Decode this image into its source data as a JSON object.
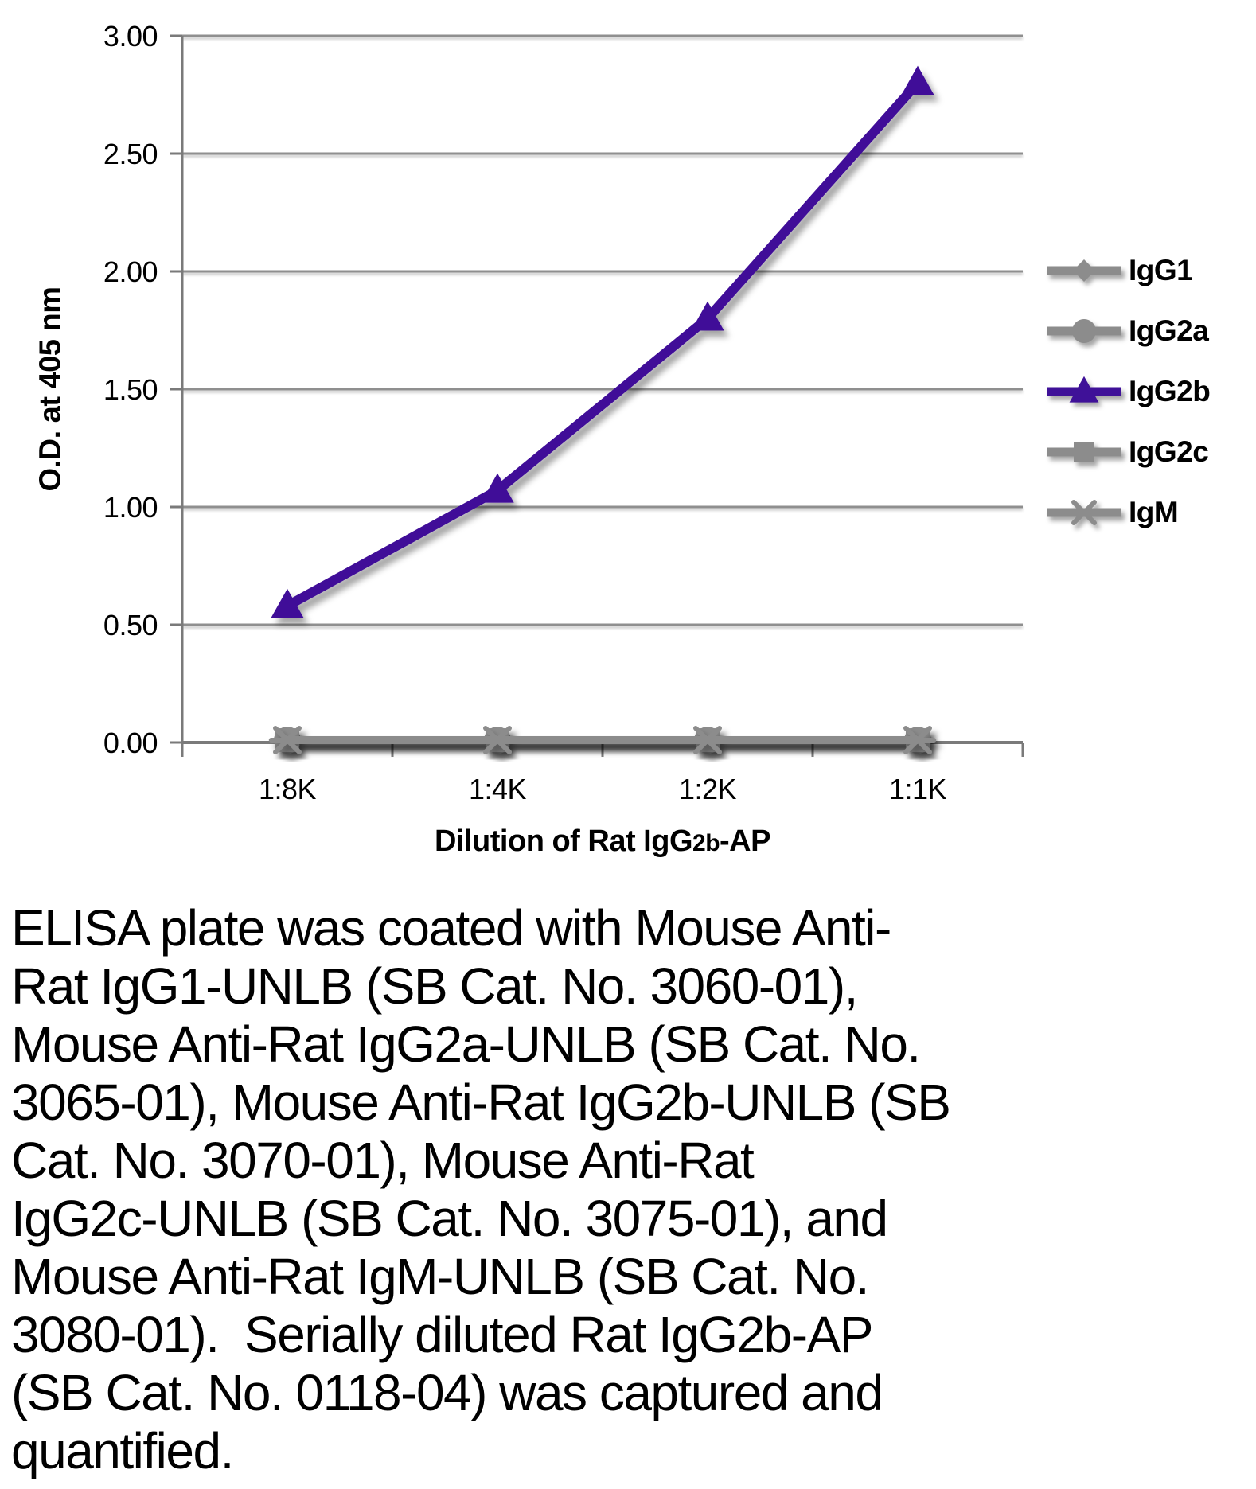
{
  "chart": {
    "ylabel": "O.D. at 405 nm",
    "xlabel_parts": {
      "pre": "Dilution of Rat IgG",
      "sub": "2b",
      "post": "-AP"
    },
    "colors": {
      "purple": "#3F1198",
      "gray": "#8C8C8C",
      "grid": "#8F8F8F",
      "axis": "#7A7A7A",
      "text": "#000000"
    }
  },
  "chart_data": {
    "type": "line",
    "title": "",
    "xlabel": "Dilution of Rat IgG2b-AP",
    "ylabel": "O.D. at 405 nm",
    "categories": [
      "1:8K",
      "1:4K",
      "1:2K",
      "1:1K"
    ],
    "y_ticks": [
      "3.00",
      "2.50",
      "2.00",
      "1.50",
      "1.00",
      "0.50",
      "0.00"
    ],
    "ylim": [
      0,
      3
    ],
    "grid": "horizontal-only",
    "legend_position": "right",
    "series": [
      {
        "name": "IgG1",
        "marker": "diamond",
        "color": "#8C8C8C",
        "values": [
          0.01,
          0.01,
          0.01,
          0.01
        ]
      },
      {
        "name": "IgG2a",
        "marker": "circle",
        "color": "#8C8C8C",
        "values": [
          0.01,
          0.01,
          0.01,
          0.01
        ]
      },
      {
        "name": "IgG2b",
        "marker": "triangle",
        "color": "#3F1198",
        "values": [
          0.58,
          1.07,
          1.8,
          2.8
        ]
      },
      {
        "name": "IgG2c",
        "marker": "square",
        "color": "#8C8C8C",
        "values": [
          0.01,
          0.01,
          0.01,
          0.01
        ]
      },
      {
        "name": "IgM",
        "marker": "star",
        "color": "#8C8C8C",
        "values": [
          0.01,
          0.01,
          0.01,
          0.01
        ]
      }
    ]
  },
  "caption": {
    "text": "ELISA plate was coated with Mouse Anti-\nRat IgG1-UNLB (SB Cat. No. 3060-01),\nMouse Anti-Rat IgG2a-UNLB (SB Cat. No.\n3065-01), Mouse Anti-Rat IgG2b-UNLB (SB\nCat. No. 3070-01), Mouse Anti-Rat\nIgG2c-UNLB (SB Cat. No. 3075-01), and\nMouse Anti-Rat IgM-UNLB (SB Cat. No.\n3080-01).  Serially diluted Rat IgG2b-AP\n(SB Cat. No. 0118-04) was captured and\nquantified."
  }
}
